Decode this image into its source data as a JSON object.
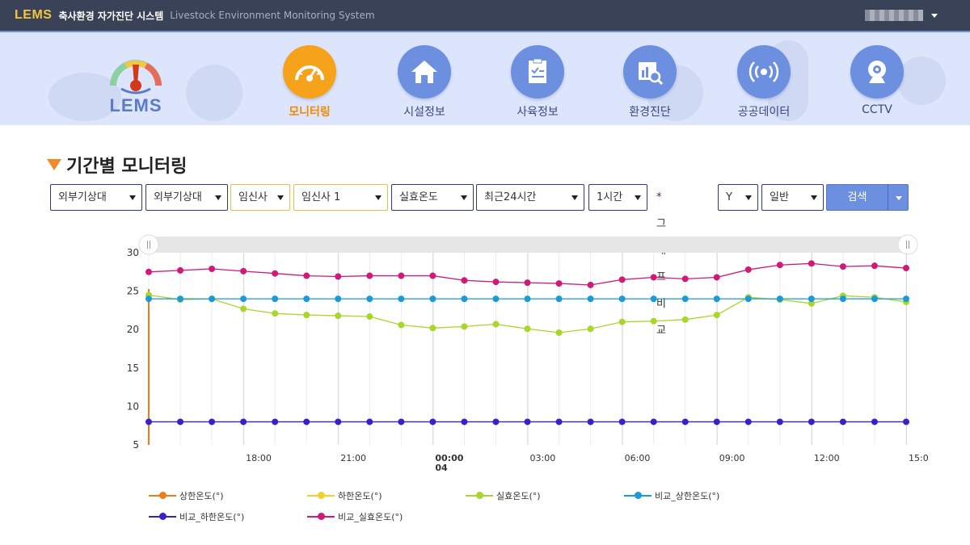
{
  "header": {
    "brand": "LEMS",
    "title_ko": "축사환경 자가진단 시스템",
    "title_en": "Livestock Environment Monitoring System"
  },
  "logo": {
    "text": "LEMS"
  },
  "nav": {
    "items": [
      {
        "label": "모니터링",
        "icon": "gauge-icon",
        "active": true
      },
      {
        "label": "시설정보",
        "icon": "house-icon",
        "active": false
      },
      {
        "label": "사육정보",
        "icon": "checklist-icon",
        "active": false
      },
      {
        "label": "환경진단",
        "icon": "chart-search-icon",
        "active": false
      },
      {
        "label": "공공데이터",
        "icon": "broadcast-icon",
        "active": false
      },
      {
        "label": "CCTV",
        "icon": "webcam-icon",
        "active": false
      }
    ]
  },
  "page": {
    "title": "기간별 모니터링"
  },
  "filters": {
    "farm_type": "외부기상대",
    "farm": "외부기상대",
    "barn_type": "임신사",
    "barn": "임신사 1",
    "sensor": "실효온도",
    "period": "최근24시간",
    "interval": "1시간",
    "compare_label": "* 그래프비교",
    "compare_value": "Y",
    "mode": "일반",
    "search_label": "검색"
  },
  "colors": {
    "upper": "#f07a1a",
    "lower": "#f2d027",
    "actual": "#a8d62a",
    "cmp_upper": "#1a9ad6",
    "cmp_lower": "#3a20c8",
    "cmp_actual": "#d01a78",
    "accent": "#6c8fe0",
    "active_nav": "#f6a21b"
  },
  "chart_data": {
    "type": "line",
    "ylim": [
      5,
      30
    ],
    "yticks": [
      5,
      10,
      15,
      20,
      25,
      30
    ],
    "xticks": [
      {
        "label": "18:00",
        "sub": "",
        "bold": false,
        "idx": 3
      },
      {
        "label": "21:00",
        "sub": "",
        "bold": false,
        "idx": 6
      },
      {
        "label": "00:00",
        "sub": "04",
        "bold": true,
        "idx": 9
      },
      {
        "label": "03:00",
        "sub": "",
        "bold": false,
        "idx": 12
      },
      {
        "label": "06:00",
        "sub": "",
        "bold": false,
        "idx": 15
      },
      {
        "label": "09:00",
        "sub": "",
        "bold": false,
        "idx": 18
      },
      {
        "label": "12:00",
        "sub": "",
        "bold": false,
        "idx": 21
      },
      {
        "label": "15:0",
        "sub": "",
        "bold": false,
        "idx": 24
      }
    ],
    "x_start_hour": 15.2,
    "series": [
      {
        "name": "상한온도(°)",
        "color": "#f07a1a",
        "values": []
      },
      {
        "name": "하한온도(°)",
        "color": "#f2d027",
        "values": []
      },
      {
        "name": "실효온도(°)",
        "color": "#a8d62a",
        "values": [
          24.5,
          23.9,
          24.0,
          22.7,
          22.1,
          21.9,
          21.8,
          21.7,
          20.6,
          20.2,
          20.4,
          20.7,
          20.1,
          19.6,
          20.1,
          21.0,
          21.1,
          21.3,
          21.9,
          24.2,
          23.9,
          23.4,
          24.4,
          24.2,
          23.6
        ]
      },
      {
        "name": "비교_상한온도(°)",
        "color": "#1a9ad6",
        "values": [
          24,
          24,
          24,
          24,
          24,
          24,
          24,
          24,
          24,
          24,
          24,
          24,
          24,
          24,
          24,
          24,
          24,
          24,
          24,
          24,
          24,
          24,
          24,
          24,
          24
        ]
      },
      {
        "name": "비교_하한온도(°)",
        "color": "#3a20c8",
        "values": [
          8,
          8,
          8,
          8,
          8,
          8,
          8,
          8,
          8,
          8,
          8,
          8,
          8,
          8,
          8,
          8,
          8,
          8,
          8,
          8,
          8,
          8,
          8,
          8,
          8
        ]
      },
      {
        "name": "비교_실효온도(°)",
        "color": "#d01a78",
        "values": [
          27.5,
          27.7,
          27.9,
          27.6,
          27.3,
          27.0,
          26.9,
          27.0,
          27.0,
          27.0,
          26.4,
          26.2,
          26.1,
          26.0,
          25.8,
          26.5,
          26.8,
          26.6,
          26.8,
          27.8,
          28.4,
          28.6,
          28.2,
          28.3,
          28.0
        ]
      }
    ]
  }
}
